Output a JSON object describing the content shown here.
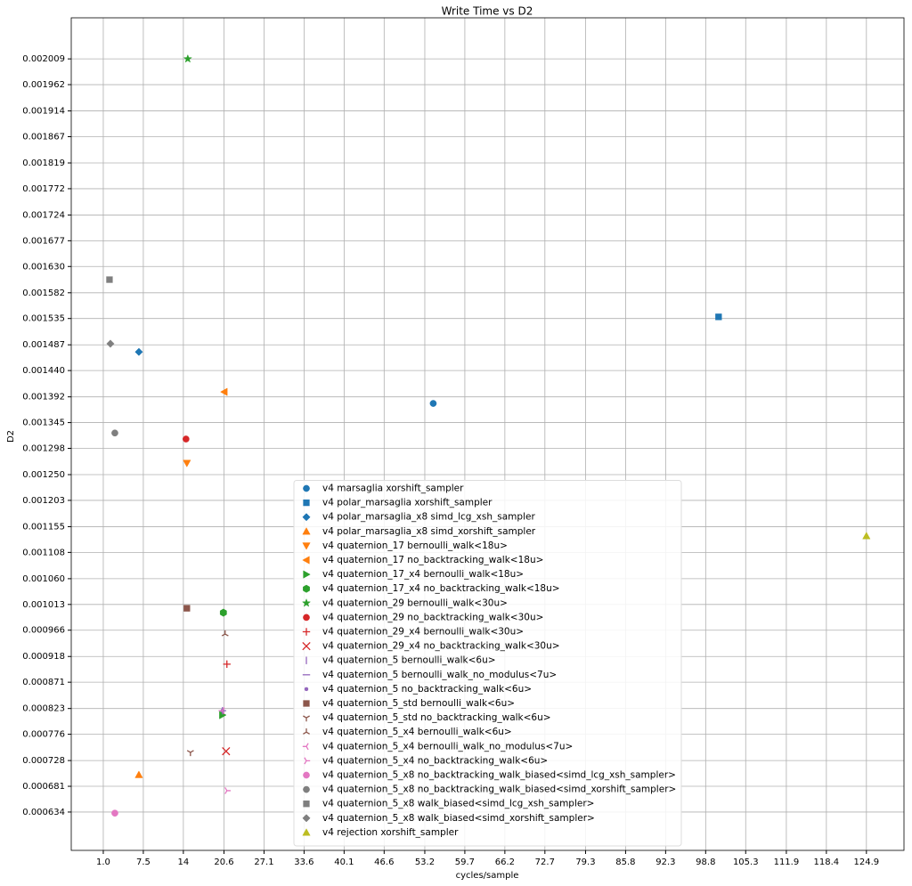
{
  "chart_data": {
    "type": "scatter",
    "title": "Write Time vs D2",
    "xlabel": "cycles/sample",
    "ylabel": "D2",
    "xlim": [
      -4.2,
      131
    ],
    "ylim": [
      0.000564,
      0.002084
    ],
    "xticks": [
      {
        "value": 1,
        "label": "1.0"
      },
      7.5,
      14,
      20.6,
      27.1,
      33.6,
      40.1,
      46.6,
      53.2,
      59.7,
      66.2,
      72.7,
      79.3,
      85.8,
      92.3,
      98.8,
      105.3,
      111.9,
      118.4,
      124.9
    ],
    "yticks": [
      0.000634,
      0.000681,
      0.000728,
      0.000776,
      0.000823,
      0.000871,
      0.000918,
      0.000966,
      0.001013,
      {
        "value": 0.00106,
        "label": "0.001060"
      },
      0.001108,
      0.001155,
      0.001203,
      {
        "value": 0.00125,
        "label": "0.001250"
      },
      0.001298,
      0.001345,
      0.001392,
      {
        "value": 0.00144,
        "label": "0.001440"
      },
      0.001487,
      0.001535,
      0.001582,
      {
        "value": 0.00163,
        "label": "0.001630"
      },
      0.001677,
      0.001724,
      0.001772,
      0.001819,
      0.001867,
      0.001914,
      0.001962,
      0.002009
    ],
    "grid": true,
    "legend": "lower center",
    "series": [
      {
        "name": "v4 marsaglia xorshift_sampler",
        "color": "#1f77b4",
        "marker": "o",
        "x": [
          54.57
        ],
        "values": [
          0.00138
        ]
      },
      {
        "name": "v4 polar_marsaglia xorshift_sampler",
        "color": "#1f77b4",
        "marker": "s",
        "x": [
          100.9
        ],
        "values": [
          0.001538
        ]
      },
      {
        "name": "v4 polar_marsaglia_x8 simd_lcg_xsh_sampler",
        "color": "#1f77b4",
        "marker": "D",
        "x": [
          6.78
        ],
        "values": [
          0.001474
        ]
      },
      {
        "name": "v4 polar_marsaglia_x8 simd_xorshift_sampler",
        "color": "#ff7f0e",
        "marker": "^",
        "x": [
          6.78
        ],
        "values": [
          0.000702
        ]
      },
      {
        "name": "v4 quaternion_17 bernoulli_walk<18u>",
        "color": "#ff7f0e",
        "marker": "v",
        "x": [
          14.57
        ],
        "values": [
          0.001271
        ]
      },
      {
        "name": "v4 quaternion_17 no_backtracking_walk<18u>",
        "color": "#ff7f0e",
        "marker": "<",
        "x": [
          20.64
        ],
        "values": [
          0.001401
        ]
      },
      {
        "name": "v4 quaternion_17_x4 bernoulli_walk<18u>",
        "color": "#2ca02c",
        "marker": ">",
        "x": [
          20.35
        ],
        "values": [
          0.000811
        ]
      },
      {
        "name": "v4 quaternion_17_x4 no_backtracking_walk<18u>",
        "color": "#2ca02c",
        "marker": "h",
        "x": [
          20.5
        ],
        "values": [
          0.000998
        ]
      },
      {
        "name": "v4 quaternion_29 bernoulli_walk<30u>",
        "color": "#2ca02c",
        "marker": "*",
        "x": [
          14.72
        ],
        "values": [
          0.002009
        ]
      },
      {
        "name": "v4 quaternion_29 no_backtracking_walk<30u>",
        "color": "#d62728",
        "marker": "o",
        "x": [
          14.43
        ],
        "values": [
          0.001315
        ]
      },
      {
        "name": "v4 quaternion_29_x4 bernoulli_walk<30u>",
        "color": "#d62728",
        "marker": "+",
        "x": [
          21.07
        ],
        "values": [
          0.000904
        ]
      },
      {
        "name": "v4 quaternion_29_x4 no_backtracking_walk<30u>",
        "color": "#d62728",
        "marker": "x",
        "x": [
          20.93
        ],
        "values": [
          0.000745
        ]
      },
      {
        "name": "v4 quaternion_5 bernoulli_walk<6u>",
        "color": "#9467bd",
        "marker": "|",
        "x": [
          20.35
        ],
        "values": [
          0.000819
        ]
      },
      {
        "name": "v4 quaternion_5 bernoulli_walk_no_modulus<7u>",
        "color": "#9467bd",
        "marker": "_",
        "x": [
          20.35
        ],
        "values": [
          0.000819
        ]
      },
      {
        "name": "v4 quaternion_5 no_backtracking_walk<6u>",
        "color": "#9467bd",
        "marker": ".",
        "x": [
          20.35
        ],
        "values": [
          0.000819
        ]
      },
      {
        "name": "v4 quaternion_5_std bernoulli_walk<6u>",
        "color": "#8c564b",
        "marker": "s",
        "x": [
          14.57
        ],
        "values": [
          0.001006
        ]
      },
      {
        "name": "v4 quaternion_5_std no_backtracking_walk<6u>",
        "color": "#8c564b",
        "marker": "1",
        "x": [
          15.15
        ],
        "values": [
          0.000743
        ]
      },
      {
        "name": "v4 quaternion_5_x4 bernoulli_walk<6u>",
        "color": "#8c564b",
        "marker": "2",
        "x": [
          20.78
        ],
        "values": [
          0.000959
        ]
      },
      {
        "name": "v4 quaternion_5_x4 bernoulli_walk_no_modulus<7u>",
        "color": "#e377c2",
        "marker": "3",
        "x": [
          20.35
        ],
        "values": [
          0.000819
        ]
      },
      {
        "name": "v4 quaternion_5_x4 no_backtracking_walk<6u>",
        "color": "#e377c2",
        "marker": "4",
        "x": [
          21.07
        ],
        "values": [
          0.000673
        ]
      },
      {
        "name": "v4 quaternion_5_x8 no_backtracking_walk_biased<simd_lcg_xsh_sampler>",
        "color": "#e377c2",
        "marker": "o",
        "x": [
          2.88
        ],
        "values": [
          0.000632
        ]
      },
      {
        "name": "v4 quaternion_5_x8 no_backtracking_walk_biased<simd_xorshift_sampler>",
        "color": "#7f7f7f",
        "marker": "o",
        "x": [
          2.88
        ],
        "values": [
          0.001326
        ]
      },
      {
        "name": "v4 quaternion_5_x8 walk_biased<simd_lcg_xsh_sampler>",
        "color": "#7f7f7f",
        "marker": "s",
        "x": [
          2.01
        ],
        "values": [
          0.001606
        ]
      },
      {
        "name": "v4 quaternion_5_x8 walk_biased<simd_xorshift_sampler>",
        "color": "#7f7f7f",
        "marker": "D",
        "x": [
          2.16
        ],
        "values": [
          0.001489
        ]
      },
      {
        "name": "v4 rejection xorshift_sampler",
        "color": "#bcbd22",
        "marker": "^",
        "x": [
          124.9
        ],
        "values": [
          0.001138
        ]
      }
    ]
  }
}
